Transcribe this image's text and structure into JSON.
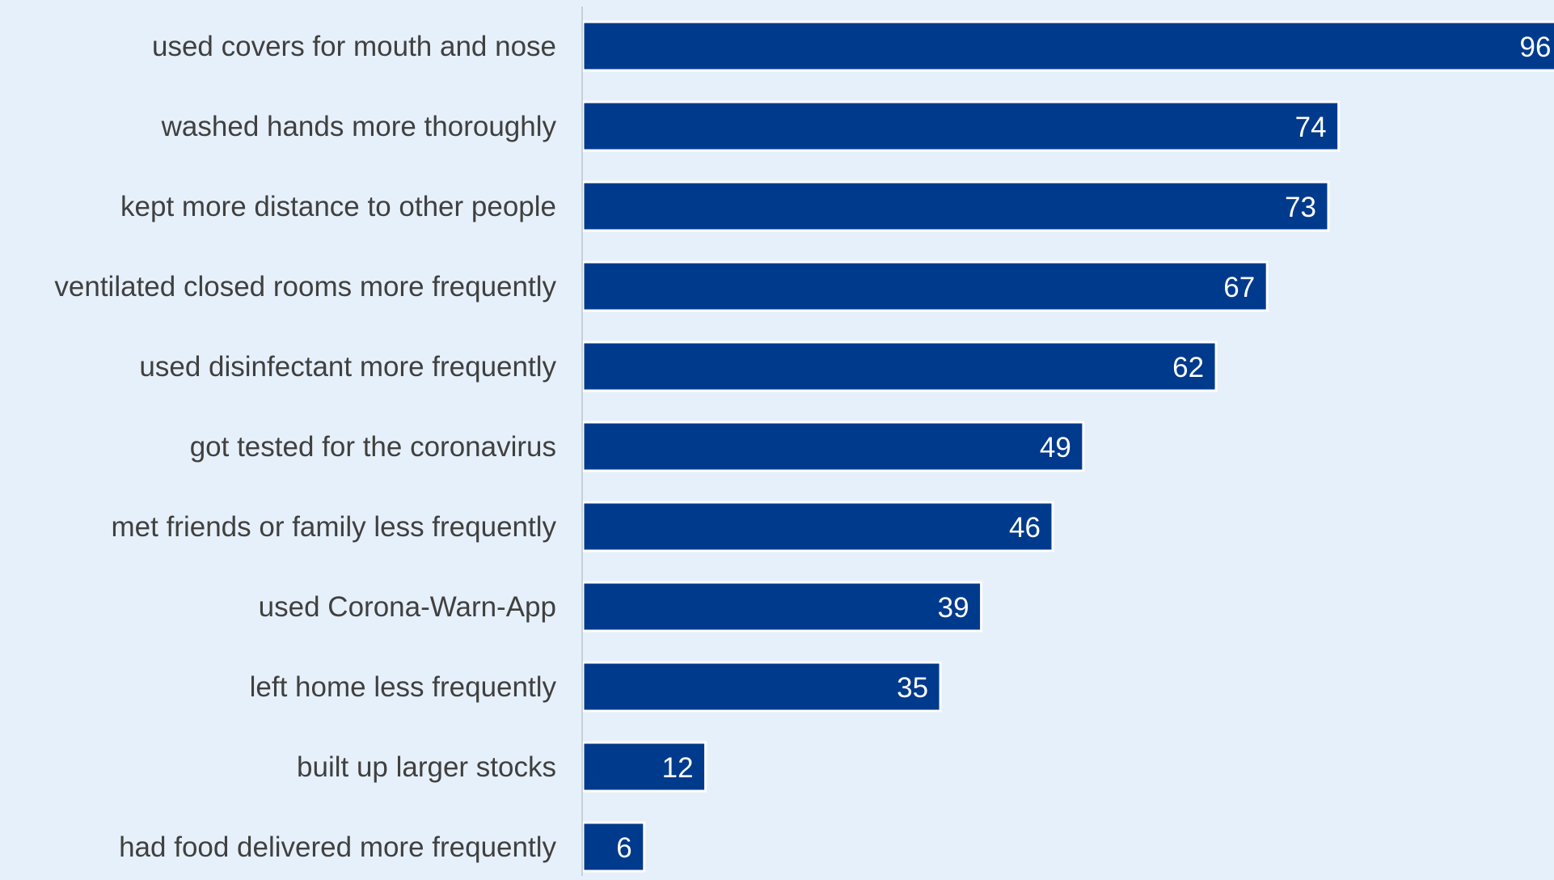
{
  "chart_data": {
    "type": "bar",
    "orientation": "horizontal",
    "categories": [
      "used covers for mouth and nose",
      "washed hands more thoroughly",
      "kept more distance to other people",
      "ventilated closed rooms more frequently",
      "used disinfectant more frequently",
      "got tested for the coronavirus",
      "met friends or family less frequently",
      "used Corona-Warn-App",
      "left home less frequently",
      "built up larger stocks",
      "had food delivered more frequently"
    ],
    "values": [
      96,
      74,
      73,
      67,
      62,
      49,
      46,
      39,
      35,
      12,
      6
    ],
    "value_labels": [
      "96",
      "74",
      "73",
      "67",
      "62",
      "49",
      "46",
      "39",
      "35",
      "12",
      "6"
    ],
    "grid": false,
    "legend": "none"
  },
  "colors": {
    "background": "#e6f0fa",
    "bar": "#003a8c",
    "bar_outline": "#ffffff",
    "axis_line": "#c8d0d8",
    "category_text": "#404040",
    "value_text": "#ffffff"
  }
}
